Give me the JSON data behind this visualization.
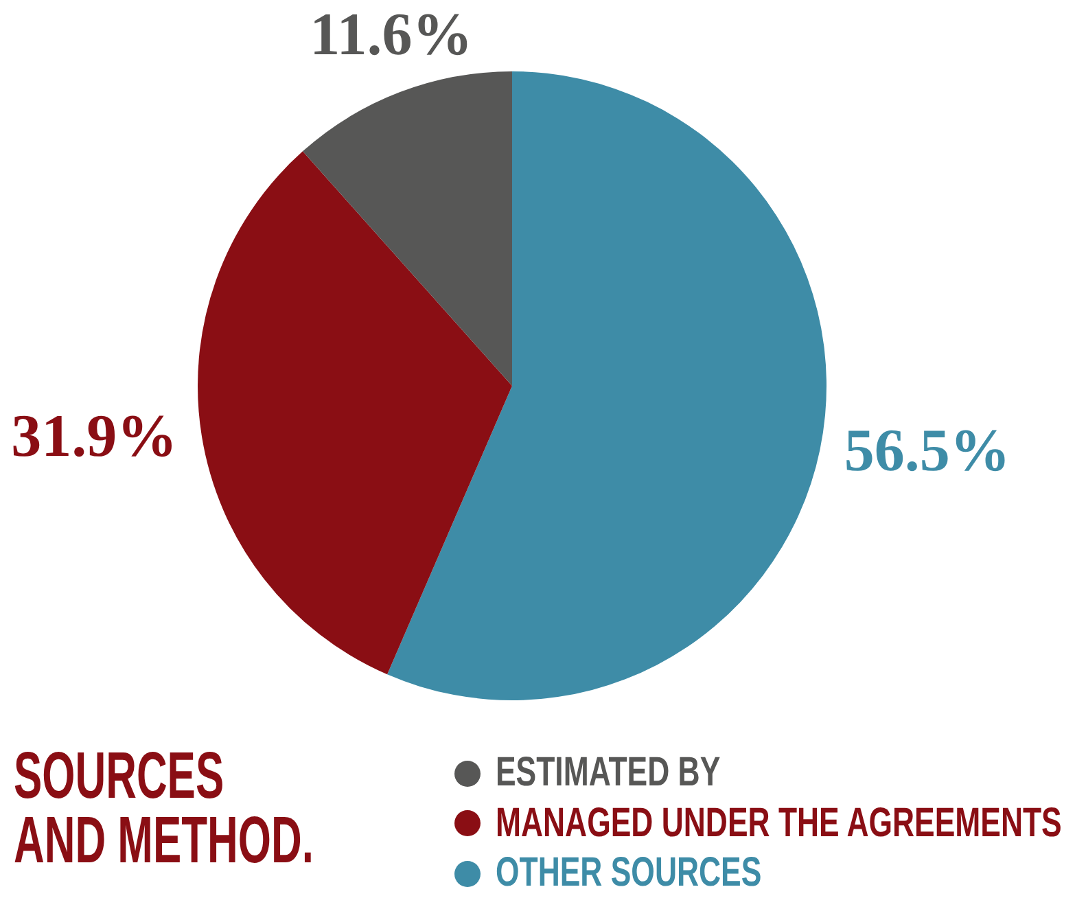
{
  "chart_data": {
    "type": "pie",
    "title": "SOURCES AND METHOD.",
    "categories": [
      "OTHER SOURCES",
      "MANAGED UNDER THE AGREEMENTS",
      "ESTIMATED BY"
    ],
    "values": [
      56.5,
      31.9,
      11.6
    ],
    "colors": [
      "#3e8ca7",
      "#8a0e14",
      "#575756"
    ],
    "value_labels": [
      "56.5%",
      "31.9%",
      "11.6%"
    ],
    "legend": "bottom"
  }
}
